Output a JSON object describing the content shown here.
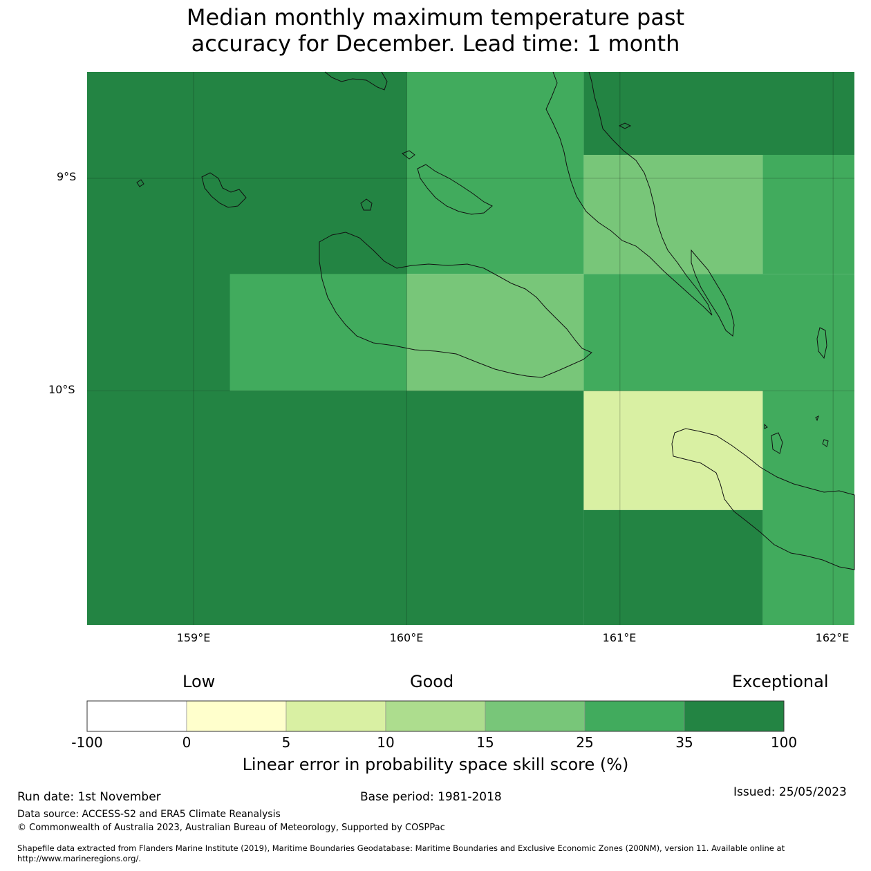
{
  "title": "Median monthly maximum temperature past\naccuracy for December. Lead time: 1 month",
  "map": {
    "lon_range": [
      158.5,
      162.1
    ],
    "lat_range": [
      -11.1,
      -8.5
    ],
    "lat_ticks": [
      {
        "value": -9,
        "label": "9°S"
      },
      {
        "value": -10,
        "label": "10°S"
      }
    ],
    "lon_ticks": [
      {
        "value": 159,
        "label": "159°E"
      },
      {
        "value": 160,
        "label": "160°E"
      },
      {
        "value": 161,
        "label": "161°E"
      },
      {
        "value": 162,
        "label": "162°E"
      }
    ],
    "skill_cells": [
      {
        "lon": [
          158.5,
          160.0
        ],
        "lat": [
          -10.0,
          -8.5
        ],
        "category": "35-100"
      },
      {
        "lon": [
          160.0,
          160.83
        ],
        "lat": [
          -9.45,
          -8.5
        ],
        "category": "25-35"
      },
      {
        "lon": [
          160.83,
          162.1
        ],
        "lat": [
          -8.89,
          -8.5
        ],
        "category": "35-100"
      },
      {
        "lon": [
          160.83,
          161.67
        ],
        "lat": [
          -9.45,
          -8.89
        ],
        "category": "15-25"
      },
      {
        "lon": [
          161.67,
          162.1
        ],
        "lat": [
          -9.45,
          -8.89
        ],
        "category": "25-35"
      },
      {
        "lon": [
          159.17,
          160.0
        ],
        "lat": [
          -10.0,
          -9.45
        ],
        "category": "25-35"
      },
      {
        "lon": [
          160.0,
          160.83
        ],
        "lat": [
          -10.0,
          -9.45
        ],
        "category": "15-25"
      },
      {
        "lon": [
          160.83,
          162.1
        ],
        "lat": [
          -10.0,
          -9.45
        ],
        "category": "25-35"
      },
      {
        "lon": [
          158.5,
          160.83
        ],
        "lat": [
          -11.1,
          -10.0
        ],
        "category": "35-100"
      },
      {
        "lon": [
          160.83,
          161.67
        ],
        "lat": [
          -10.56,
          -10.0
        ],
        "category": "5-10"
      },
      {
        "lon": [
          160.83,
          161.67
        ],
        "lat": [
          -11.1,
          -10.56
        ],
        "category": "35-100"
      },
      {
        "lon": [
          161.67,
          162.1
        ],
        "lat": [
          -11.1,
          -10.0
        ],
        "category": "25-35"
      }
    ]
  },
  "legend": {
    "categories": [
      {
        "label": "Low"
      },
      {
        "label": "Good"
      },
      {
        "label": "Exceptional"
      }
    ],
    "bins": [
      {
        "range": "-100-0",
        "color": "#ffffff"
      },
      {
        "range": "0-5",
        "color": "#ffffcc"
      },
      {
        "range": "5-10",
        "color": "#d9f0a3"
      },
      {
        "range": "10-15",
        "color": "#addd8e"
      },
      {
        "range": "15-25",
        "color": "#78c679"
      },
      {
        "range": "25-35",
        "color": "#41ab5d"
      },
      {
        "range": "35-100",
        "color": "#238443"
      }
    ],
    "ticks": [
      "-100",
      "0",
      "5",
      "10",
      "15",
      "25",
      "35",
      "100"
    ],
    "title": "Linear error in probability space skill score (%)"
  },
  "footer": {
    "run_date": "Run date: 1st November",
    "base_period": "Base period: 1981-2018",
    "issued": "Issued: 25/05/2023",
    "data_source": "Data source: ACCESS-S2 and ERA5 Climate Reanalysis",
    "copyright": "© Commonwealth of Australia 2023, Australian Bureau of Meteorology, Supported by COSPPac",
    "shapefile": "Shapefile data extracted from Flanders Marine Institute (2019), Maritime Boundaries Geodatabase: Maritime Boundaries and Exclusive Economic Zones (200NM), version 11. Available online at http://www.marineregions.org/."
  }
}
